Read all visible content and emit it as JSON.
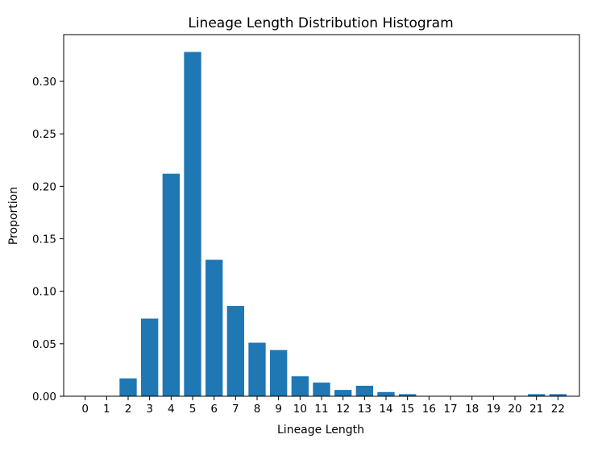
{
  "chart_data": {
    "type": "bar",
    "title": "Lineage Length Distribution Histogram",
    "xlabel": "Lineage Length",
    "ylabel": "Proportion",
    "categories": [
      "0",
      "1",
      "2",
      "3",
      "4",
      "5",
      "6",
      "7",
      "8",
      "9",
      "10",
      "11",
      "12",
      "13",
      "14",
      "15",
      "16",
      "17",
      "18",
      "19",
      "20",
      "21",
      "22"
    ],
    "values": [
      0,
      0,
      0.017,
      0.074,
      0.212,
      0.328,
      0.13,
      0.086,
      0.051,
      0.044,
      0.019,
      0.013,
      0.006,
      0.01,
      0.004,
      0.002,
      0,
      0,
      0,
      0,
      0,
      0.002,
      0.002
    ],
    "ylim": [
      0,
      0.3445
    ],
    "yticks": [
      0.0,
      0.05,
      0.1,
      0.15,
      0.2,
      0.25,
      0.3
    ],
    "ytick_labels": [
      "0.00",
      "0.05",
      "0.10",
      "0.15",
      "0.20",
      "0.25",
      "0.30"
    ],
    "grid": false,
    "bar_color": "#1f77b4"
  }
}
